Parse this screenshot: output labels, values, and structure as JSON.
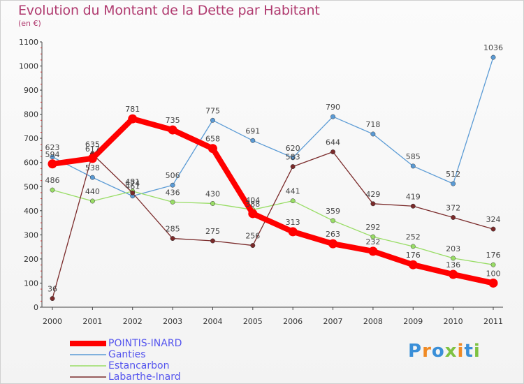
{
  "chart_data": {
    "type": "line",
    "title": "Evolution du Montant de la Dette par Habitant",
    "subtitle": "(en €)",
    "xlabel": "",
    "ylabel": "",
    "x": [
      "2000",
      "2001",
      "2002",
      "2003",
      "2004",
      "2005",
      "2006",
      "2007",
      "2008",
      "2009",
      "2010",
      "2011"
    ],
    "ylim": [
      0,
      1100
    ],
    "yticks": [
      "0",
      "100",
      "200",
      "300",
      "400",
      "500",
      "600",
      "700",
      "800",
      "900",
      "1000",
      "1100"
    ],
    "grid": false,
    "legend_position": "bottom-left",
    "series": [
      {
        "name": "POINTIS-INARD",
        "color": "#ff0000",
        "emphasis": true,
        "values": [
          594,
          617,
          781,
          735,
          658,
          388,
          313,
          263,
          232,
          176,
          136,
          100
        ],
        "labels": [
          "594",
          "617",
          "781",
          "735",
          "658",
          "388",
          "313",
          "263",
          "232",
          "176",
          "136",
          "100"
        ]
      },
      {
        "name": "Ganties",
        "color": "#5b9bd5",
        "values": [
          623,
          538,
          461,
          506,
          775,
          691,
          620,
          790,
          718,
          585,
          512,
          1036
        ],
        "labels": [
          "623",
          "538",
          "461",
          "506",
          "775",
          "691",
          "620",
          "790",
          "718",
          "585",
          "512",
          "1036"
        ]
      },
      {
        "name": "Estancarbon",
        "color": "#99dd66",
        "values": [
          486,
          440,
          481,
          436,
          430,
          404,
          441,
          359,
          292,
          252,
          203,
          176
        ],
        "labels": [
          "486",
          "440",
          "481",
          "436",
          "430",
          "404",
          "441",
          "359",
          "292",
          "252",
          "203",
          "176"
        ]
      },
      {
        "name": "Labarthe-Inard",
        "color": "#7a2a2a",
        "values": [
          36,
          635,
          474,
          285,
          275,
          256,
          583,
          644,
          429,
          419,
          372,
          324
        ],
        "labels": [
          "36",
          "635",
          "474",
          "285",
          "275",
          "256",
          "583",
          "644",
          "429",
          "419",
          "372",
          "324"
        ]
      }
    ]
  },
  "legend": {
    "items": [
      {
        "label": "POINTIS-INARD",
        "color": "#5555ee"
      },
      {
        "label": "Ganties",
        "color": "#5555ee"
      },
      {
        "label": "Estancarbon",
        "color": "#5555ee"
      },
      {
        "label": "Labarthe-Inard",
        "color": "#5555ee"
      }
    ]
  },
  "logo": {
    "text": "Proxiti",
    "letters": [
      "P",
      "r",
      "o",
      "x",
      "i",
      "t",
      "i"
    ],
    "colors": [
      "#3a8fd8",
      "#f08a24",
      "#3a8fd8",
      "#7ec242",
      "#f08a24",
      "#3a8fd8",
      "#7ec242"
    ]
  }
}
